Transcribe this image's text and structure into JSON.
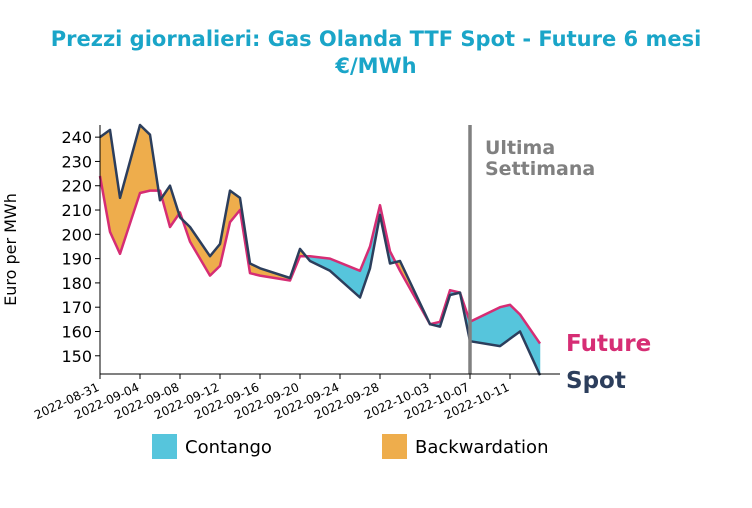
{
  "chart_data": {
    "type": "line",
    "title": "Prezzi giornalieri: Gas Olanda TTF Spot - Future 6 mesi\n€/MWh",
    "title_color": "#1aa5c8",
    "xlabel": "",
    "ylabel": "Euro per MWh",
    "ylim": [
      142.5,
      245
    ],
    "yticks": [
      150,
      160,
      170,
      180,
      190,
      200,
      210,
      220,
      230,
      240
    ],
    "xlim": [
      "2022-08-31",
      "2022-10-16"
    ],
    "xticks": [
      "2022-08-31",
      "2022-09-04",
      "2022-09-08",
      "2022-09-12",
      "2022-09-16",
      "2022-09-20",
      "2022-09-24",
      "2022-09-28",
      "2022-10-03",
      "2022-10-07",
      "2022-10-11"
    ],
    "grid": false,
    "series": [
      {
        "name": "Spot",
        "color": "#2c3e5c",
        "x": [
          "2022-08-31",
          "2022-09-01",
          "2022-09-02",
          "2022-09-04",
          "2022-09-05",
          "2022-09-06",
          "2022-09-07",
          "2022-09-08",
          "2022-09-09",
          "2022-09-11",
          "2022-09-12",
          "2022-09-13",
          "2022-09-14",
          "2022-09-15",
          "2022-09-16",
          "2022-09-19",
          "2022-09-20",
          "2022-09-21",
          "2022-09-23",
          "2022-09-26",
          "2022-09-27",
          "2022-09-28",
          "2022-09-29",
          "2022-09-30",
          "2022-10-03",
          "2022-10-04",
          "2022-10-05",
          "2022-10-06",
          "2022-10-07",
          "2022-10-10",
          "2022-10-11",
          "2022-10-12",
          "2022-10-14"
        ],
        "values": [
          240,
          243,
          215,
          245,
          241,
          214,
          220,
          207,
          203,
          191,
          196,
          218,
          215,
          188,
          186,
          182,
          194,
          189,
          185,
          174,
          186,
          208,
          188,
          189,
          163,
          162,
          175,
          176,
          156,
          154,
          157,
          160,
          142
        ]
      },
      {
        "name": "Future",
        "color": "#d62d74",
        "x": [
          "2022-08-31",
          "2022-09-01",
          "2022-09-02",
          "2022-09-04",
          "2022-09-05",
          "2022-09-06",
          "2022-09-07",
          "2022-09-08",
          "2022-09-09",
          "2022-09-11",
          "2022-09-12",
          "2022-09-13",
          "2022-09-14",
          "2022-09-15",
          "2022-09-16",
          "2022-09-19",
          "2022-09-20",
          "2022-09-21",
          "2022-09-23",
          "2022-09-26",
          "2022-09-27",
          "2022-09-28",
          "2022-09-29",
          "2022-09-30",
          "2022-10-03",
          "2022-10-04",
          "2022-10-05",
          "2022-10-06",
          "2022-10-07",
          "2022-10-10",
          "2022-10-11",
          "2022-10-12",
          "2022-10-14"
        ],
        "values": [
          224,
          201,
          192,
          217,
          218,
          218,
          203,
          209,
          197,
          183,
          187,
          205,
          210,
          184,
          183,
          181,
          191,
          191,
          190,
          185,
          195,
          212,
          193,
          185,
          163,
          164,
          177,
          176,
          164,
          170,
          171,
          167,
          155
        ]
      }
    ],
    "fill_between": {
      "contango_color": "#56c5dc",
      "backwardation_color": "#eead4c"
    },
    "vline": {
      "x": "2022-10-07",
      "label": "Ultima\nSettimana",
      "color": "#808080"
    },
    "end_labels": [
      {
        "text": "Future",
        "color": "#d62d74"
      },
      {
        "text": "Spot",
        "color": "#2c3e5c"
      }
    ],
    "legend": {
      "position": "bottom",
      "items": [
        {
          "label": "Contango",
          "color": "#56c5dc"
        },
        {
          "label": "Backwardation",
          "color": "#eead4c"
        }
      ]
    }
  }
}
